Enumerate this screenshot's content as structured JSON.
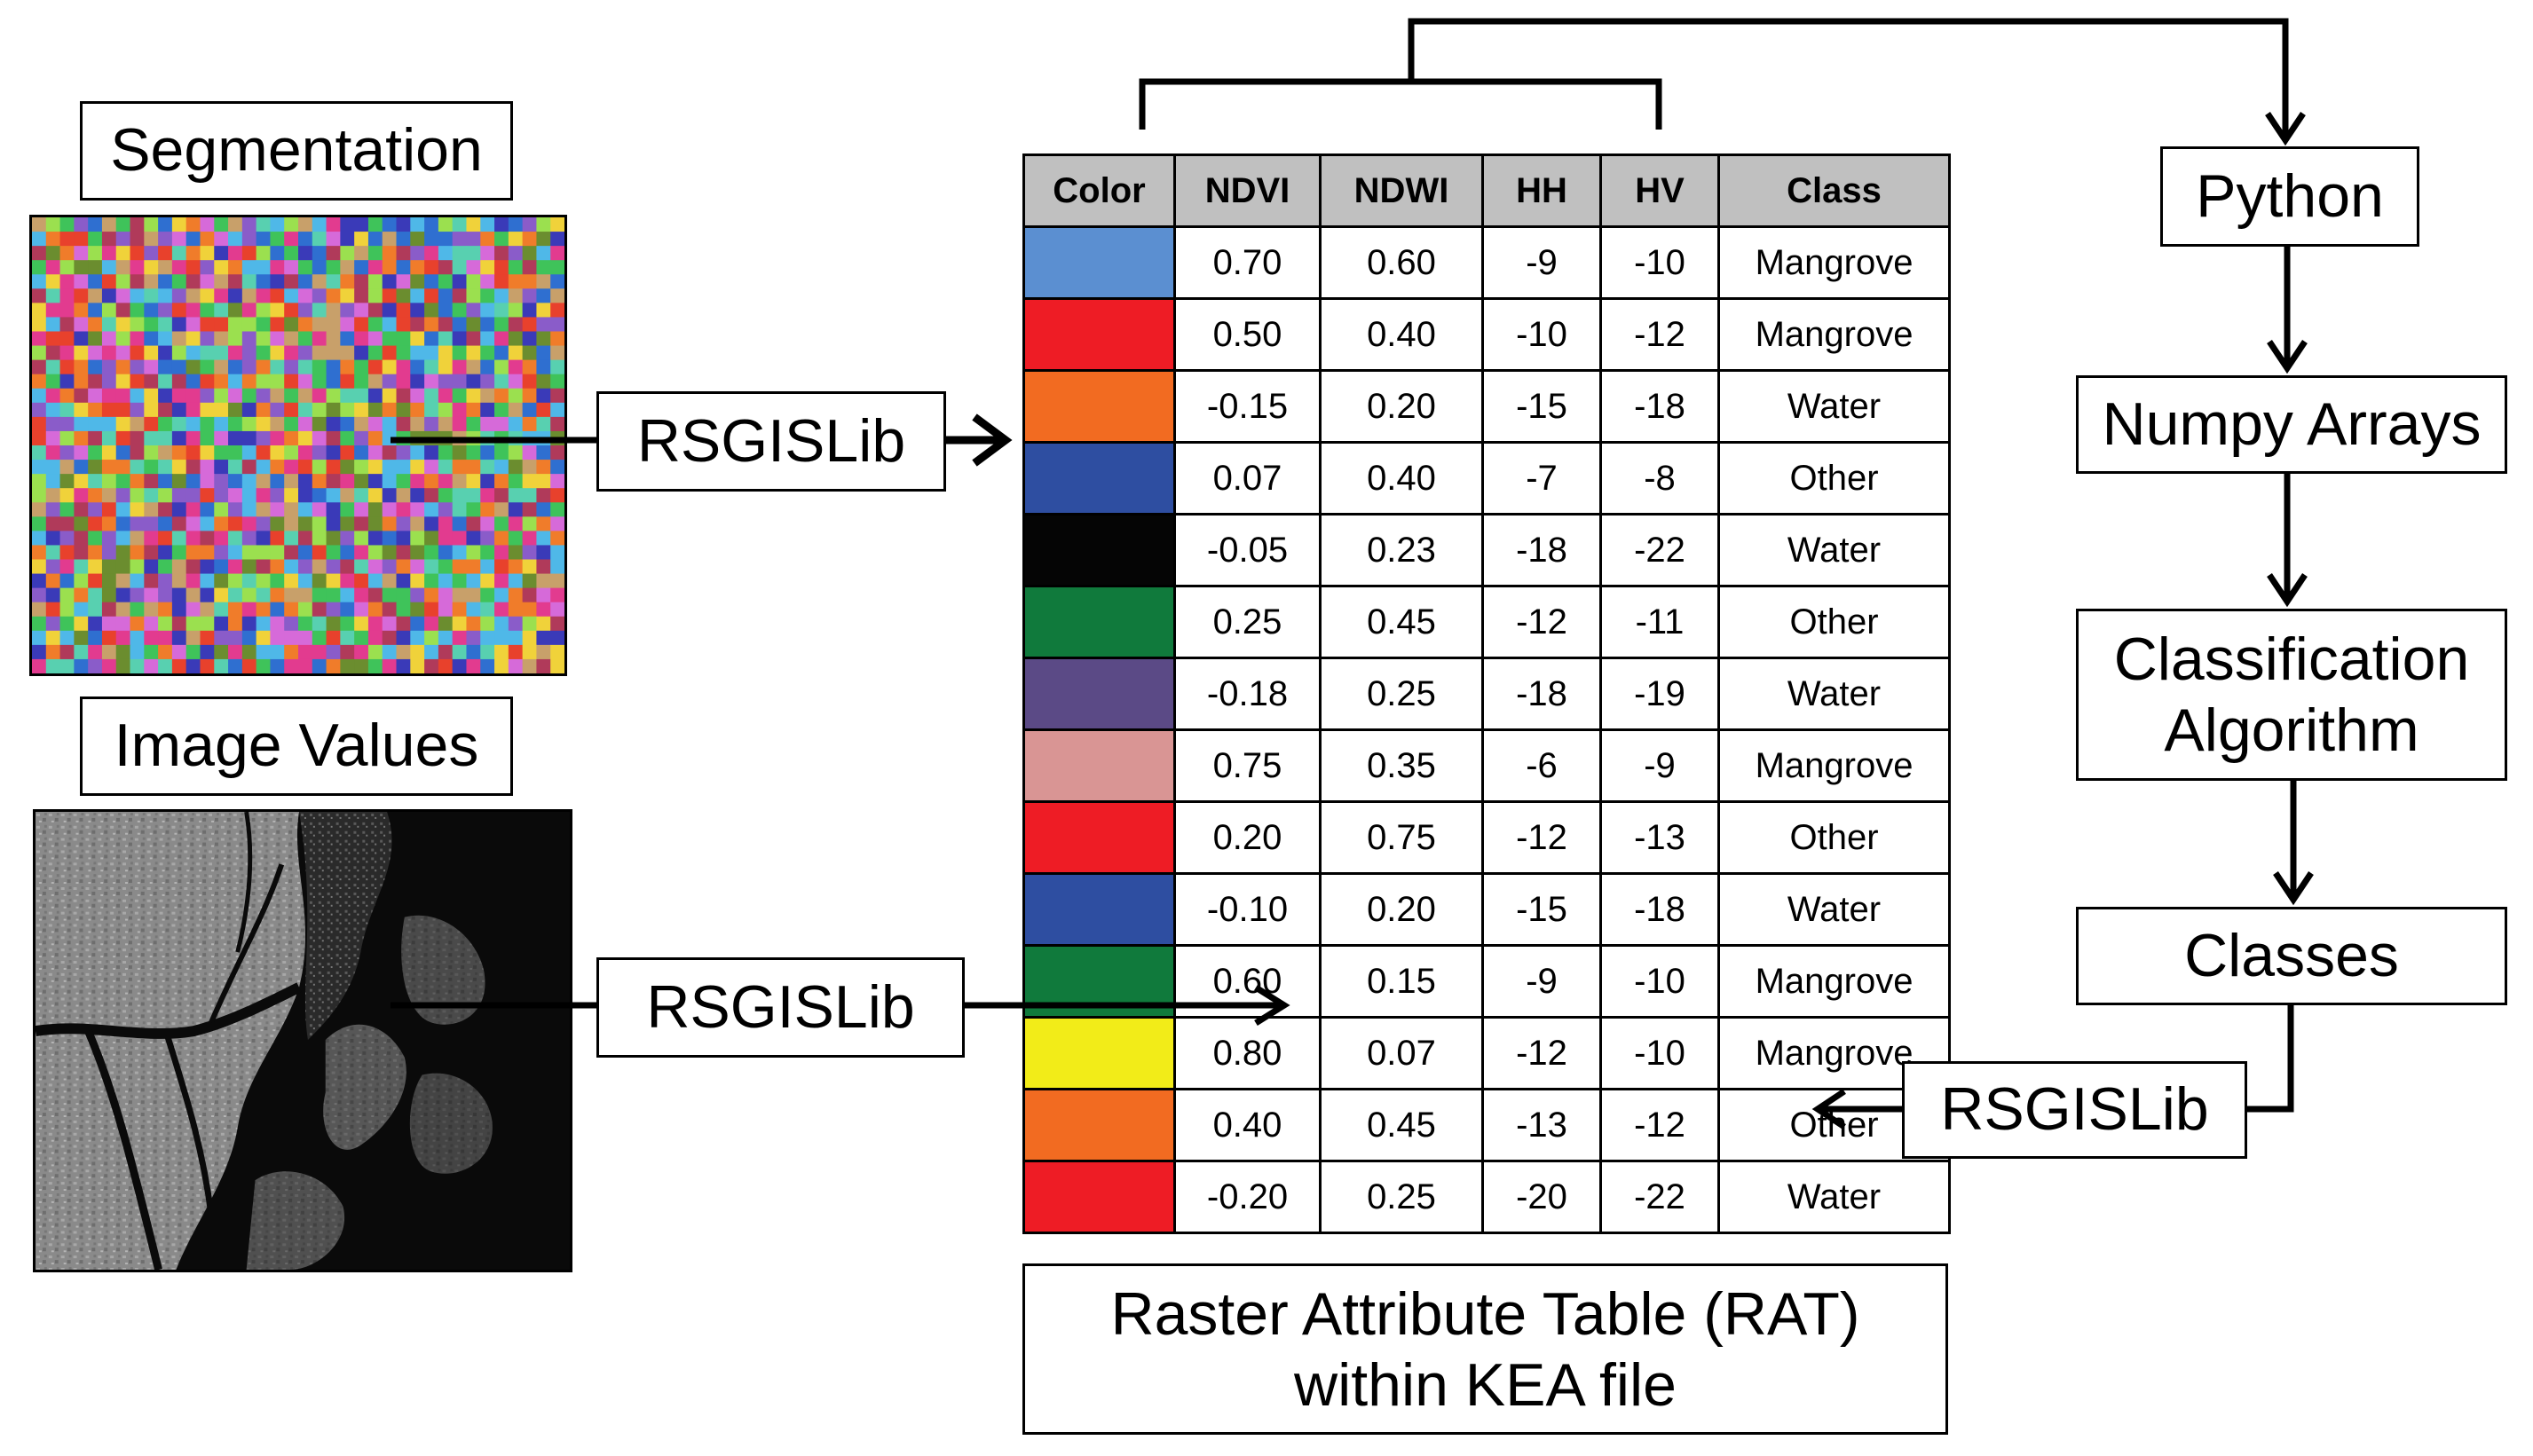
{
  "labels": {
    "segmentation": "Segmentation",
    "image_values": "Image Values",
    "rsgislib_top": "RSGISLib",
    "rsgislib_bottom": "RSGISLib",
    "rsgislib_right": "RSGISLib",
    "python": "Python",
    "numpy": "Numpy Arrays",
    "classification_line1": "Classification",
    "classification_line2": "Algorithm",
    "classes": "Classes",
    "rat_line1": "Raster Attribute Table (RAT)",
    "rat_line2": "within KEA file"
  },
  "table": {
    "headers": [
      "Color",
      "NDVI",
      "NDWI",
      "HH",
      "HV",
      "Class"
    ],
    "rows": [
      {
        "color": "#5b8fd1",
        "ndvi": "0.70",
        "ndwi": "0.60",
        "hh": "-9",
        "hv": "-10",
        "class": "Mangrove"
      },
      {
        "color": "#ee1c25",
        "ndvi": "0.50",
        "ndwi": "0.40",
        "hh": "-10",
        "hv": "-12",
        "class": "Mangrove"
      },
      {
        "color": "#f26b21",
        "ndvi": "-0.15",
        "ndwi": "0.20",
        "hh": "-15",
        "hv": "-18",
        "class": "Water"
      },
      {
        "color": "#2e4ea1",
        "ndvi": "0.07",
        "ndwi": "0.40",
        "hh": "-7",
        "hv": "-8",
        "class": "Other"
      },
      {
        "color": "#050505",
        "ndvi": "-0.05",
        "ndwi": "0.23",
        "hh": "-18",
        "hv": "-22",
        "class": "Water"
      },
      {
        "color": "#107a3c",
        "ndvi": "0.25",
        "ndwi": "0.45",
        "hh": "-12",
        "hv": "-11",
        "class": "Other"
      },
      {
        "color": "#5b4a86",
        "ndvi": "-0.18",
        "ndwi": "0.25",
        "hh": "-18",
        "hv": "-19",
        "class": "Water"
      },
      {
        "color": "#d99594",
        "ndvi": "0.75",
        "ndwi": "0.35",
        "hh": "-6",
        "hv": "-9",
        "class": "Mangrove"
      },
      {
        "color": "#ee1c25",
        "ndvi": "0.20",
        "ndwi": "0.75",
        "hh": "-12",
        "hv": "-13",
        "class": "Other"
      },
      {
        "color": "#2e4ea1",
        "ndvi": "-0.10",
        "ndwi": "0.20",
        "hh": "-15",
        "hv": "-18",
        "class": "Water"
      },
      {
        "color": "#107a3c",
        "ndvi": "0.60",
        "ndwi": "0.15",
        "hh": "-9",
        "hv": "-10",
        "class": "Mangrove"
      },
      {
        "color": "#f2ec18",
        "ndvi": "0.80",
        "ndwi": "0.07",
        "hh": "-12",
        "hv": "-10",
        "class": "Mangrove"
      },
      {
        "color": "#f26b21",
        "ndvi": "0.40",
        "ndwi": "0.45",
        "hh": "-13",
        "hv": "-12",
        "class": "Other"
      },
      {
        "color": "#ee1c25",
        "ndvi": "-0.20",
        "ndwi": "0.25",
        "hh": "-20",
        "hv": "-22",
        "class": "Water"
      }
    ]
  },
  "colors": {
    "header_bg": "#c0c0c0",
    "segment_palette": [
      "#e23b8f",
      "#3fc35a",
      "#4fb8e8",
      "#8a5cc9",
      "#f0d23a",
      "#e8412c",
      "#2f6fd0",
      "#c8a06a",
      "#9be04f",
      "#d66ad9",
      "#58d0b0",
      "#f07c2a",
      "#6b8d2f",
      "#b03a5a",
      "#3a3ab8"
    ]
  }
}
